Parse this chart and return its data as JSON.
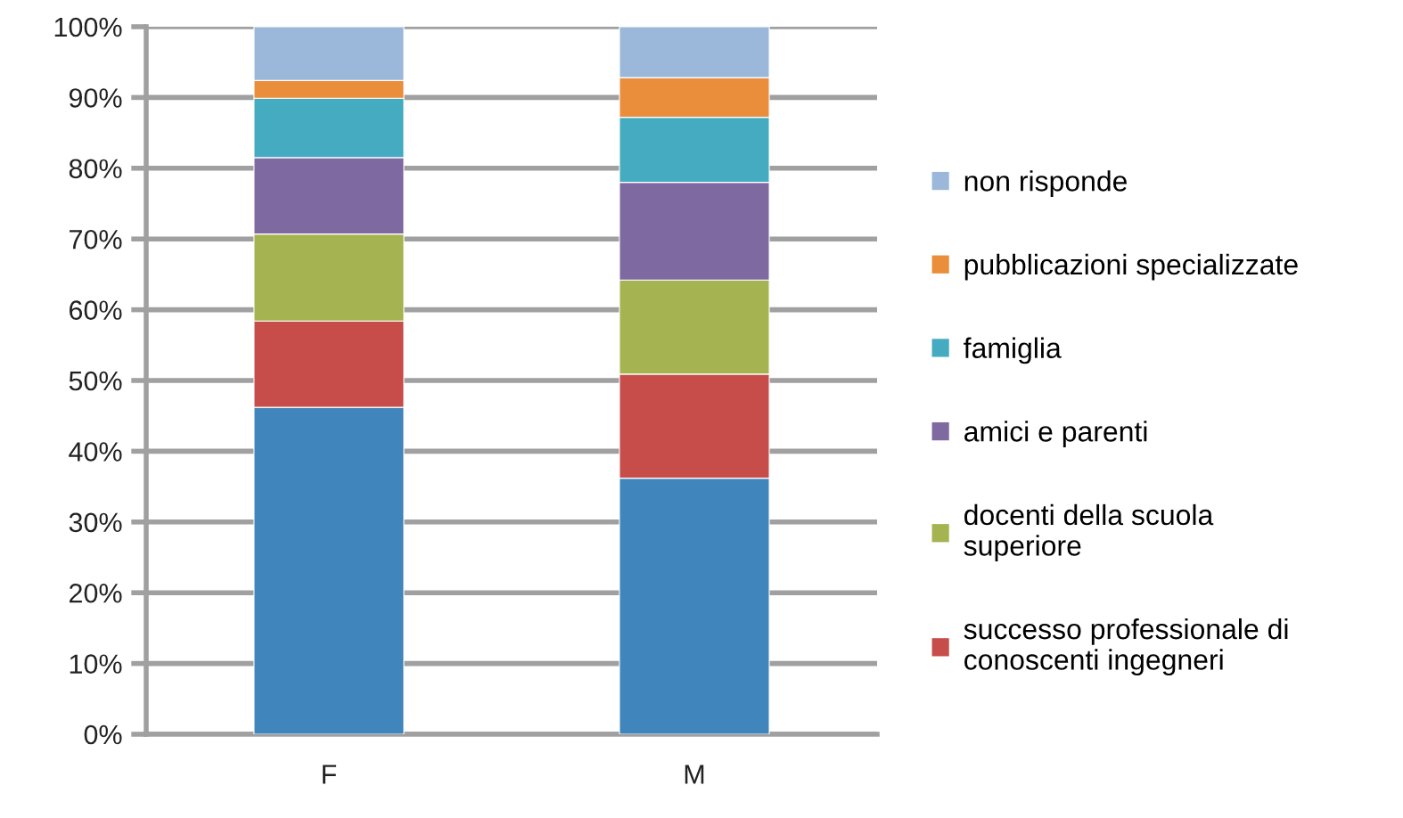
{
  "chart_data": {
    "type": "bar",
    "stacked": true,
    "categories": [
      "F",
      "M"
    ],
    "series": [
      {
        "color": "#4185bd",
        "values": [
          46.2,
          36.2
        ]
      },
      {
        "name": "successo professionale di\nconoscenti ingegneri",
        "color": "#c64d4a",
        "values": [
          12.2,
          14.7
        ]
      },
      {
        "name": "docenti della scuola\nsuperiore",
        "color": "#a5b350",
        "values": [
          12.3,
          13.3
        ]
      },
      {
        "name": "amici e parenti",
        "color": "#7e69a1",
        "values": [
          10.8,
          13.8
        ]
      },
      {
        "name": "famiglia",
        "color": "#44abc0",
        "values": [
          8.4,
          9.2
        ]
      },
      {
        "name": "pubblicazioni specializzate",
        "color": "#ea8e3c",
        "values": [
          2.5,
          5.6
        ]
      },
      {
        "name": "non risponde",
        "color": "#9bb8da",
        "values": [
          7.6,
          7.2
        ]
      }
    ],
    "ylim": [
      0,
      100
    ],
    "yticks": [
      {
        "value": 0,
        "label": "0%"
      },
      {
        "value": 10,
        "label": "10%"
      },
      {
        "value": 20,
        "label": "20%"
      },
      {
        "value": 30,
        "label": "30%"
      },
      {
        "value": 40,
        "label": "40%"
      },
      {
        "value": 50,
        "label": "50%"
      },
      {
        "value": 60,
        "label": "60%"
      },
      {
        "value": 70,
        "label": "70%"
      },
      {
        "value": 80,
        "label": "80%"
      },
      {
        "value": 90,
        "label": "90%"
      },
      {
        "value": 100,
        "label": "100%"
      }
    ],
    "grid": "y",
    "legend": "right"
  }
}
